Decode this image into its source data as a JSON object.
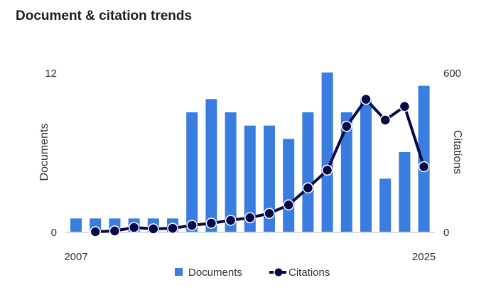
{
  "chart_data": {
    "type": "bar+line",
    "title": "Document & citation trends",
    "categories": [
      2007,
      2008,
      2009,
      2010,
      2011,
      2012,
      2013,
      2014,
      2015,
      2016,
      2017,
      2018,
      2019,
      2020,
      2021,
      2022,
      2023,
      2024,
      2025
    ],
    "x_tick_labels": [
      "2007",
      "2025"
    ],
    "ylabel_left": "Documents",
    "ylabel_right": "Citations",
    "ylim_left": [
      0,
      12
    ],
    "ylim_right": [
      0,
      600
    ],
    "left_ticks": [
      "0",
      "12"
    ],
    "right_ticks": [
      "0",
      "600"
    ],
    "series": [
      {
        "name": "Documents",
        "type": "bar",
        "axis": "left",
        "color": "#3a7de0",
        "values": [
          1,
          1,
          1,
          1,
          1,
          1,
          9,
          10,
          9,
          8,
          8,
          7,
          9,
          12,
          9,
          10,
          4,
          6,
          11
        ]
      },
      {
        "name": "Citations",
        "type": "line",
        "axis": "right",
        "color": "#050a45",
        "values": [
          null,
          0,
          3,
          16,
          11,
          13,
          24,
          32,
          43,
          53,
          69,
          101,
          165,
          232,
          397,
          499,
          421,
          472,
          245
        ]
      }
    ],
    "legend": "bottom"
  }
}
